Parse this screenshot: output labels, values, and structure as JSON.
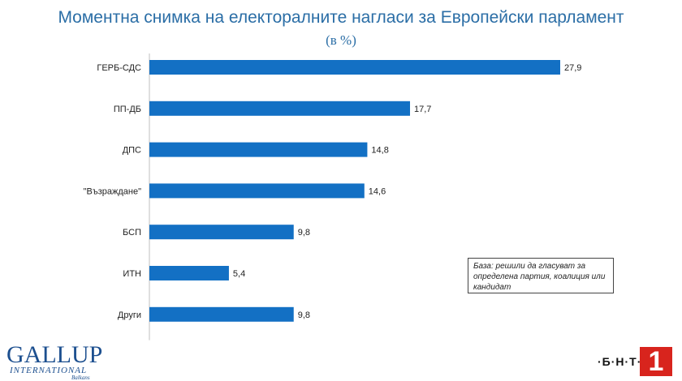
{
  "title": "Моментна снимка на електоралните нагласи за Европейски парламент",
  "subtitle": "(в %)",
  "note": "База: решили да гласуват за определена партия, коалиция или кандидат",
  "logos": {
    "gallup_main": "GALLUP",
    "gallup_sub": "INTERNATIONAL",
    "gallup_tiny": "Balkans",
    "bnt_text": "·Б·Н·Т·",
    "bnt_number": "1"
  },
  "colors": {
    "bar": "#1370c4",
    "title": "#2b6ea6"
  },
  "chart_data": {
    "type": "bar",
    "orientation": "horizontal",
    "title": "Моментна снимка на електоралните нагласи за Европейски парламент",
    "subtitle": "(в %)",
    "categories": [
      "ГЕРБ-СДС",
      "ПП-ДБ",
      "ДПС",
      "\"Възраждане\"",
      "БСП",
      "ИТН",
      "Други"
    ],
    "values": [
      27.9,
      17.7,
      14.8,
      14.6,
      9.8,
      5.4,
      9.8
    ],
    "value_labels": [
      "27,9",
      "17,7",
      "14,8",
      "14,6",
      "9,8",
      "5,4",
      "9,8"
    ],
    "xlim": [
      0,
      27.9
    ],
    "grid": false,
    "legend": "none"
  }
}
